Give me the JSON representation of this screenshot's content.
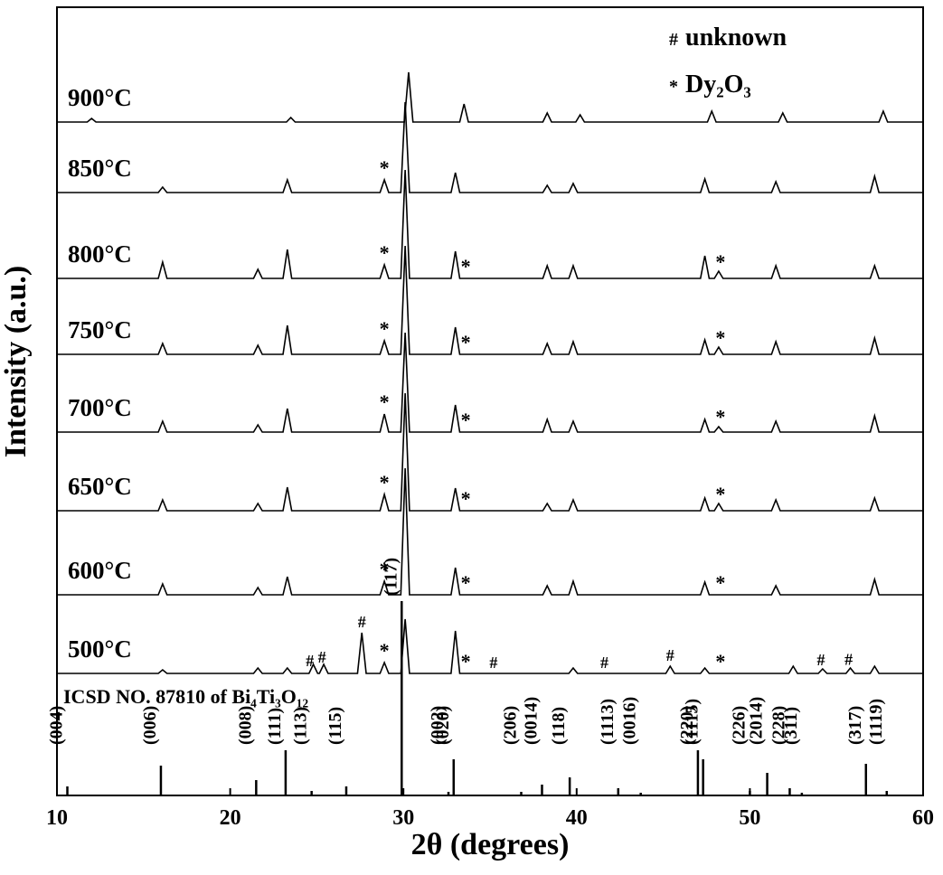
{
  "chart_data": {
    "type": "line",
    "xlabel": "2θ (degrees)",
    "ylabel": "Intensity (a.u.)",
    "xlim": [
      10,
      60
    ],
    "xticks": [
      10,
      20,
      30,
      40,
      50,
      60
    ],
    "legend": [
      {
        "symbol": "#",
        "text": "unknown"
      },
      {
        "symbol": "*",
        "text": "Dy₂O₃"
      }
    ],
    "series": [
      {
        "name": "900°C",
        "color": "#000000",
        "x": [
          10,
          11.75,
          12,
          12.25,
          23.25,
          23.5,
          23.75,
          30.05,
          30.3,
          30.55,
          33.25,
          33.5,
          33.75,
          38.05,
          38.3,
          38.55,
          39.95,
          40.2,
          40.45,
          47.55,
          47.8,
          48.05,
          51.65,
          51.9,
          52.15,
          57.45,
          57.7,
          57.95,
          60
        ],
        "values": [
          0,
          0,
          4,
          0,
          0,
          5,
          0,
          0,
          55,
          0,
          0,
          20,
          0,
          0,
          10,
          0,
          0,
          8,
          0,
          0,
          12,
          0,
          0,
          10,
          0,
          0,
          12,
          0,
          0
        ],
        "markers": []
      },
      {
        "name": "850°C",
        "color": "#000000",
        "x": [
          10,
          15.85,
          16.1,
          16.35,
          23.05,
          23.3,
          23.55,
          28.65,
          28.9,
          29.15,
          29.85,
          30.1,
          30.35,
          32.75,
          33.0,
          33.25,
          38.05,
          38.3,
          38.55,
          39.55,
          39.8,
          40.05,
          47.15,
          47.4,
          47.65,
          51.25,
          51.5,
          51.75,
          56.95,
          57.2,
          57.45,
          60
        ],
        "values": [
          0,
          0,
          6,
          0,
          0,
          14,
          0,
          0,
          14,
          0,
          0,
          100,
          0,
          0,
          22,
          0,
          0,
          8,
          0,
          0,
          10,
          0,
          0,
          15,
          0,
          0,
          12,
          0,
          0,
          18,
          0,
          0
        ],
        "markers": [
          {
            "label": "*",
            "x": 28.9
          }
        ]
      },
      {
        "name": "800°C",
        "color": "#000000",
        "x": [
          10,
          15.85,
          16.1,
          16.35,
          21.35,
          21.6,
          21.85,
          23.05,
          23.3,
          23.55,
          28.65,
          28.9,
          29.15,
          29.85,
          30.1,
          30.35,
          32.75,
          33.0,
          33.25,
          38.05,
          38.3,
          38.55,
          39.55,
          39.8,
          40.05,
          47.15,
          47.4,
          47.65,
          47.95,
          48.2,
          48.45,
          51.25,
          51.5,
          51.75,
          56.95,
          57.2,
          57.45,
          60
        ],
        "values": [
          0,
          0,
          18,
          0,
          0,
          10,
          0,
          0,
          32,
          0,
          0,
          15,
          0,
          0,
          120,
          0,
          0,
          30,
          0,
          0,
          14,
          0,
          0,
          14,
          0,
          0,
          25,
          0,
          0,
          8,
          0,
          0,
          14,
          0,
          0,
          14,
          0,
          0
        ],
        "markers": [
          {
            "label": "*",
            "x": 28.9
          },
          {
            "label": "*",
            "x": 33.6
          },
          {
            "label": "*",
            "x": 48.3
          }
        ]
      },
      {
        "name": "750°C",
        "color": "#000000",
        "x": [
          10,
          15.85,
          16.1,
          16.35,
          21.35,
          21.6,
          21.85,
          23.05,
          23.3,
          23.55,
          28.65,
          28.9,
          29.15,
          29.85,
          30.1,
          30.35,
          32.75,
          33.0,
          33.25,
          38.05,
          38.3,
          38.55,
          39.55,
          39.8,
          40.05,
          47.15,
          47.4,
          47.65,
          47.95,
          48.2,
          48.45,
          51.25,
          51.5,
          51.75,
          56.95,
          57.2,
          57.45,
          60
        ],
        "values": [
          0,
          0,
          12,
          0,
          0,
          10,
          0,
          0,
          32,
          0,
          0,
          15,
          0,
          0,
          120,
          0,
          0,
          30,
          0,
          0,
          12,
          0,
          0,
          14,
          0,
          0,
          16,
          0,
          0,
          8,
          0,
          0,
          14,
          0,
          0,
          18,
          0,
          0
        ],
        "markers": [
          {
            "label": "*",
            "x": 28.9
          },
          {
            "label": "*",
            "x": 33.6
          },
          {
            "label": "*",
            "x": 48.3
          }
        ]
      },
      {
        "name": "700°C",
        "color": "#000000",
        "x": [
          10,
          15.85,
          16.1,
          16.35,
          21.35,
          21.6,
          21.85,
          23.05,
          23.3,
          23.55,
          28.65,
          28.9,
          29.15,
          29.85,
          30.1,
          30.35,
          32.75,
          33.0,
          33.25,
          38.05,
          38.3,
          38.55,
          39.55,
          39.8,
          40.05,
          47.15,
          47.4,
          47.65,
          47.95,
          48.2,
          48.45,
          51.25,
          51.5,
          51.75,
          56.95,
          57.2,
          57.45,
          60
        ],
        "values": [
          0,
          0,
          12,
          0,
          0,
          8,
          0,
          0,
          26,
          0,
          0,
          20,
          0,
          0,
          110,
          0,
          0,
          30,
          0,
          0,
          14,
          0,
          0,
          12,
          0,
          0,
          14,
          0,
          0,
          6,
          0,
          0,
          12,
          0,
          0,
          18,
          0,
          0
        ],
        "markers": [
          {
            "label": "*",
            "x": 28.9
          },
          {
            "label": "*",
            "x": 33.6
          },
          {
            "label": "*",
            "x": 48.3
          }
        ]
      },
      {
        "name": "650°C",
        "color": "#000000",
        "x": [
          10,
          15.85,
          16.1,
          16.35,
          21.35,
          21.6,
          21.85,
          23.05,
          23.3,
          23.55,
          28.65,
          28.9,
          29.15,
          29.85,
          30.1,
          30.35,
          32.75,
          33.0,
          33.25,
          38.05,
          38.3,
          38.55,
          39.55,
          39.8,
          40.05,
          47.15,
          47.4,
          47.65,
          47.95,
          48.2,
          48.45,
          51.25,
          51.5,
          51.75,
          56.95,
          57.2,
          57.45,
          60
        ],
        "values": [
          0,
          0,
          12,
          0,
          0,
          8,
          0,
          0,
          26,
          0,
          0,
          18,
          0,
          0,
          130,
          0,
          0,
          25,
          0,
          0,
          8,
          0,
          0,
          12,
          0,
          0,
          14,
          0,
          0,
          8,
          0,
          0,
          12,
          0,
          0,
          14,
          0,
          0
        ],
        "markers": [
          {
            "label": "*",
            "x": 28.9
          },
          {
            "label": "*",
            "x": 33.6
          },
          {
            "label": "*",
            "x": 48.3
          }
        ]
      },
      {
        "name": "600°C",
        "color": "#000000",
        "x": [
          10,
          15.85,
          16.1,
          16.35,
          21.35,
          21.6,
          21.85,
          23.05,
          23.3,
          23.55,
          28.65,
          28.9,
          29.15,
          29.85,
          30.1,
          30.35,
          32.75,
          33.0,
          33.25,
          38.05,
          38.3,
          38.55,
          39.55,
          39.8,
          40.05,
          47.15,
          47.4,
          47.65,
          51.25,
          51.5,
          51.75,
          56.95,
          57.2,
          57.45,
          60
        ],
        "values": [
          0,
          0,
          12,
          0,
          0,
          8,
          0,
          0,
          20,
          0,
          0,
          15,
          0,
          0,
          140,
          0,
          0,
          30,
          0,
          0,
          10,
          0,
          0,
          15,
          0,
          0,
          14,
          0,
          0,
          10,
          0,
          0,
          17,
          0,
          0
        ],
        "markers": [
          {
            "label": "*",
            "x": 28.9
          },
          {
            "label": "*",
            "x": 33.6
          },
          {
            "label": "*",
            "x": 48.3
          }
        ]
      },
      {
        "name": "500°C",
        "color": "#000000",
        "x": [
          10,
          15.85,
          16.1,
          16.35,
          21.35,
          21.6,
          21.85,
          23.05,
          23.3,
          23.55,
          24.55,
          24.8,
          25.05,
          25.15,
          25.4,
          25.65,
          27.35,
          27.6,
          27.85,
          28.65,
          28.9,
          29.15,
          29.85,
          30.1,
          30.35,
          32.75,
          33.0,
          33.25,
          39.55,
          39.8,
          40.05,
          45.15,
          45.4,
          45.65,
          47.15,
          47.4,
          47.65,
          52.25,
          52.5,
          52.75,
          53.95,
          54.2,
          54.45,
          55.55,
          55.8,
          56.05,
          56.95,
          57.2,
          57.45,
          60
        ],
        "values": [
          0,
          0,
          4,
          0,
          0,
          6,
          0,
          0,
          6,
          0,
          0,
          10,
          0,
          0,
          10,
          0,
          0,
          45,
          0,
          0,
          12,
          0,
          0,
          60,
          0,
          0,
          47,
          0,
          0,
          6,
          0,
          0,
          8,
          0,
          0,
          6,
          0,
          0,
          8,
          0,
          0,
          5,
          0,
          0,
          6,
          0,
          0,
          8,
          0,
          0
        ],
        "markers": [
          {
            "label": "#",
            "x": 24.6
          },
          {
            "label": "#",
            "x": 25.3
          },
          {
            "label": "#",
            "x": 27.6
          },
          {
            "label": "*",
            "x": 28.9
          },
          {
            "label": "*",
            "x": 33.6
          },
          {
            "label": "#",
            "x": 35.2
          },
          {
            "label": "#",
            "x": 41.6
          },
          {
            "label": "#",
            "x": 45.4
          },
          {
            "label": "*",
            "x": 48.3
          },
          {
            "label": "#",
            "x": 54.1
          },
          {
            "label": "#",
            "x": 55.7
          }
        ]
      }
    ],
    "reference": {
      "title": "ICSD NO. 87810 of Bi₄Ti₃O₁₂",
      "labels": [
        "(004)",
        "(006)",
        "(008)",
        "(111)",
        "(113)",
        "(115)",
        "(117)",
        "(002)",
        "(020)",
        "(206)",
        "(0014)",
        "(118)",
        "(1113)",
        "(0016)",
        "(220)",
        "(1115)",
        "(226)",
        "(2014)",
        "(228)",
        "(311)",
        "(317)",
        "(1119)"
      ],
      "x": [
        10.6,
        16.0,
        21.5,
        23.2,
        24.7,
        26.7,
        29.9,
        32.6,
        32.9,
        36.8,
        38.0,
        39.6,
        42.4,
        43.7,
        47.0,
        47.3,
        50.0,
        51.0,
        52.3,
        53.0,
        56.7,
        57.9
      ],
      "values": [
        10,
        33,
        17,
        50,
        5,
        10,
        215,
        4,
        40,
        4,
        12,
        20,
        8,
        3,
        50,
        40,
        5,
        25,
        8,
        3,
        35,
        5
      ]
    }
  }
}
